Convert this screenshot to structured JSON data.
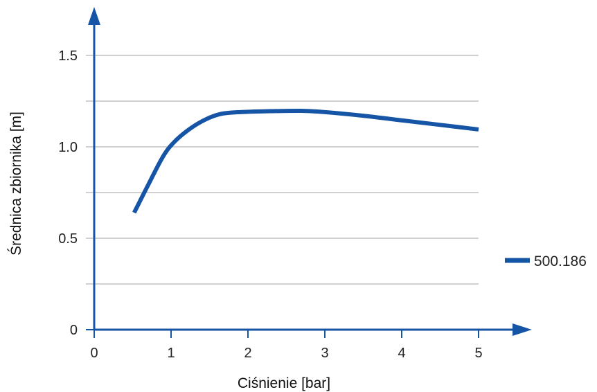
{
  "chart_data": {
    "type": "line",
    "xlabel": "Ciśnienie [bar]",
    "ylabel": "Średnica zbiornika [m]",
    "xlim": [
      0,
      5.6
    ],
    "ylim": [
      0,
      1.7
    ],
    "x_ticks": [
      0,
      1,
      2,
      3,
      4,
      5
    ],
    "x_tick_labels": [
      "0",
      "1",
      "2",
      "3",
      "4",
      "5"
    ],
    "y_ticks": [
      0,
      0.25,
      0.5,
      0.75,
      1.0,
      1.25,
      1.5
    ],
    "y_tick_labels": [
      "0",
      "",
      "0.5",
      "",
      "1.0",
      "",
      "1.5"
    ],
    "grid": true,
    "legend_position": "right",
    "series": [
      {
        "name": "500.186",
        "color": "#1655a5",
        "x": [
          0.52,
          0.7,
          0.9,
          1.05,
          1.25,
          1.45,
          1.65,
          1.9,
          2.3,
          2.7,
          3.0,
          3.5,
          4.0,
          4.5,
          5.0
        ],
        "y": [
          0.64,
          0.79,
          0.95,
          1.03,
          1.1,
          1.15,
          1.18,
          1.19,
          1.195,
          1.197,
          1.19,
          1.17,
          1.145,
          1.12,
          1.095
        ]
      }
    ]
  }
}
